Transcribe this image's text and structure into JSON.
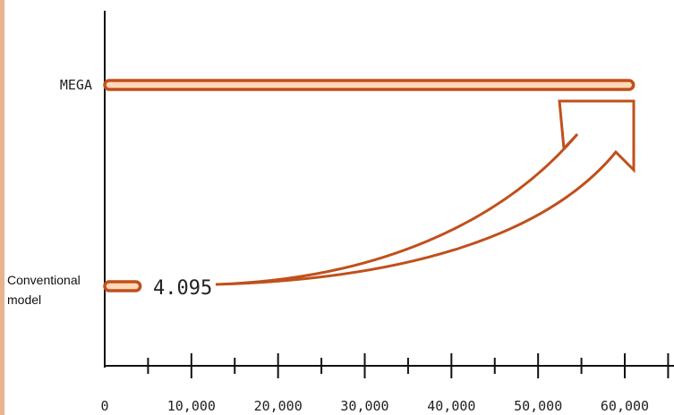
{
  "chart_data": {
    "type": "bar",
    "orientation": "horizontal",
    "categories": [
      "MEGA",
      "Conventional model"
    ],
    "category_label_lines": [
      [
        "MEGA"
      ],
      [
        "Conventional",
        "model"
      ]
    ],
    "values": [
      61000,
      4095
    ],
    "data_labels": [
      "",
      "4.095"
    ],
    "xlim": [
      0,
      62000
    ],
    "x_ticks": [
      0,
      10000,
      20000,
      30000,
      40000,
      50000,
      60000
    ],
    "x_tick_labels": [
      "0",
      "10,000",
      "20,000",
      "30,000",
      "40,000",
      "50,000",
      "60,000"
    ],
    "x_minor_ticks": [
      5000,
      15000,
      25000,
      35000,
      45000,
      55000
    ],
    "annotation": "curved arrow from Conventional model to MEGA",
    "grid": false,
    "colors": {
      "bar_fill": "#ffd9b8",
      "bar_stroke": "#c0501c",
      "arrow": "#c0501c",
      "axis": "#111111",
      "accent_strip": "#e8b38e"
    }
  }
}
